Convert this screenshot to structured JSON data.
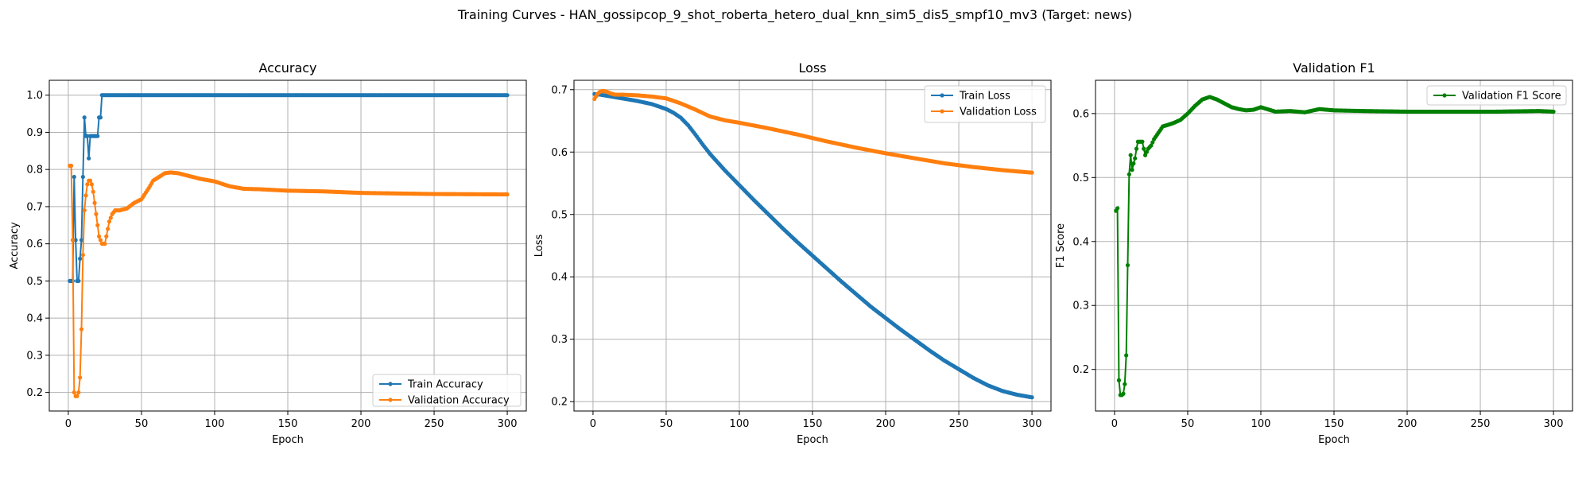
{
  "figure_title": "Training Curves - HAN_gossipcop_9_shot_roberta_hetero_dual_knn_sim5_dis5_smpf10_mv3 (Target: news)",
  "colors": {
    "train": "#1f77b4",
    "val": "#ff7f0e",
    "f1": "#008000",
    "grid": "#b0b0b0"
  },
  "chart_data": [
    {
      "type": "line",
      "title": "Accuracy",
      "xlabel": "Epoch",
      "ylabel": "Accuracy",
      "xlim": [
        -13,
        313
      ],
      "ylim": [
        0.15,
        1.04
      ],
      "xticks": [
        0,
        50,
        100,
        150,
        200,
        250,
        300
      ],
      "yticks": [
        0.2,
        0.3,
        0.4,
        0.5,
        0.6,
        0.7,
        0.8,
        0.9,
        1.0
      ],
      "ytick_labels": [
        "0.2",
        "0.3",
        "0.4",
        "0.5",
        "0.6",
        "0.7",
        "0.8",
        "0.9",
        "1.0"
      ],
      "grid": true,
      "legend_position": "lower right",
      "series": [
        {
          "name": "Train Accuracy",
          "color": "#1f77b4",
          "points": [
            [
              1,
              0.5
            ],
            [
              2,
              0.5
            ],
            [
              3,
              0.5
            ],
            [
              4,
              0.78
            ],
            [
              5,
              0.61
            ],
            [
              6,
              0.5
            ],
            [
              7,
              0.5
            ],
            [
              8,
              0.56
            ],
            [
              9,
              0.61
            ],
            [
              10,
              0.78
            ],
            [
              11,
              0.94
            ],
            [
              12,
              0.89
            ],
            [
              13,
              0.89
            ],
            [
              14,
              0.83
            ],
            [
              15,
              0.89
            ],
            [
              16,
              0.89
            ],
            [
              17,
              0.89
            ],
            [
              18,
              0.89
            ],
            [
              19,
              0.89
            ],
            [
              20,
              0.89
            ],
            [
              21,
              0.94
            ],
            [
              22,
              0.94
            ],
            [
              23,
              1.0
            ],
            [
              300,
              1.0
            ]
          ]
        },
        {
          "name": "Validation Accuracy",
          "color": "#ff7f0e",
          "points": [
            [
              1,
              0.81
            ],
            [
              2,
              0.81
            ],
            [
              3,
              0.61
            ],
            [
              4,
              0.2
            ],
            [
              5,
              0.19
            ],
            [
              6,
              0.19
            ],
            [
              7,
              0.2
            ],
            [
              8,
              0.24
            ],
            [
              9,
              0.37
            ],
            [
              10,
              0.57
            ],
            [
              11,
              0.69
            ],
            [
              12,
              0.73
            ],
            [
              13,
              0.76
            ],
            [
              14,
              0.77
            ],
            [
              15,
              0.77
            ],
            [
              16,
              0.76
            ],
            [
              17,
              0.74
            ],
            [
              18,
              0.71
            ],
            [
              19,
              0.68
            ],
            [
              20,
              0.65
            ],
            [
              21,
              0.62
            ],
            [
              22,
              0.61
            ],
            [
              23,
              0.6
            ],
            [
              24,
              0.6
            ],
            [
              25,
              0.6
            ],
            [
              26,
              0.62
            ],
            [
              27,
              0.64
            ],
            [
              28,
              0.66
            ],
            [
              30,
              0.68
            ],
            [
              32,
              0.69
            ],
            [
              35,
              0.69
            ],
            [
              40,
              0.695
            ],
            [
              45,
              0.71
            ],
            [
              50,
              0.72
            ],
            [
              55,
              0.75
            ],
            [
              58,
              0.77
            ],
            [
              62,
              0.78
            ],
            [
              66,
              0.79
            ],
            [
              70,
              0.792
            ],
            [
              75,
              0.79
            ],
            [
              80,
              0.785
            ],
            [
              90,
              0.775
            ],
            [
              100,
              0.768
            ],
            [
              110,
              0.755
            ],
            [
              120,
              0.748
            ],
            [
              130,
              0.747
            ],
            [
              150,
              0.743
            ],
            [
              175,
              0.741
            ],
            [
              200,
              0.737
            ],
            [
              250,
              0.734
            ],
            [
              300,
              0.733
            ]
          ]
        }
      ]
    },
    {
      "type": "line",
      "title": "Loss",
      "xlabel": "Epoch",
      "ylabel": "Loss",
      "xlim": [
        -13,
        313
      ],
      "ylim": [
        0.185,
        0.715
      ],
      "xticks": [
        0,
        50,
        100,
        150,
        200,
        250,
        300
      ],
      "yticks": [
        0.2,
        0.3,
        0.4,
        0.5,
        0.6,
        0.7
      ],
      "ytick_labels": [
        "0.2",
        "0.3",
        "0.4",
        "0.5",
        "0.6",
        "0.7"
      ],
      "grid": true,
      "legend_position": "upper right",
      "series": [
        {
          "name": "Train Loss",
          "color": "#1f77b4",
          "points": [
            [
              1,
              0.693
            ],
            [
              5,
              0.692
            ],
            [
              10,
              0.69
            ],
            [
              20,
              0.686
            ],
            [
              30,
              0.682
            ],
            [
              40,
              0.677
            ],
            [
              50,
              0.669
            ],
            [
              55,
              0.663
            ],
            [
              60,
              0.655
            ],
            [
              65,
              0.643
            ],
            [
              70,
              0.628
            ],
            [
              75,
              0.612
            ],
            [
              80,
              0.597
            ],
            [
              90,
              0.571
            ],
            [
              100,
              0.547
            ],
            [
              110,
              0.523
            ],
            [
              120,
              0.5
            ],
            [
              130,
              0.477
            ],
            [
              140,
              0.455
            ],
            [
              150,
              0.434
            ],
            [
              160,
              0.413
            ],
            [
              170,
              0.392
            ],
            [
              180,
              0.372
            ],
            [
              190,
              0.352
            ],
            [
              200,
              0.334
            ],
            [
              210,
              0.316
            ],
            [
              220,
              0.299
            ],
            [
              230,
              0.282
            ],
            [
              240,
              0.266
            ],
            [
              250,
              0.252
            ],
            [
              260,
              0.238
            ],
            [
              270,
              0.226
            ],
            [
              280,
              0.217
            ],
            [
              290,
              0.211
            ],
            [
              300,
              0.207
            ]
          ]
        },
        {
          "name": "Validation Loss",
          "color": "#ff7f0e",
          "points": [
            [
              1,
              0.685
            ],
            [
              3,
              0.693
            ],
            [
              5,
              0.697
            ],
            [
              7,
              0.698
            ],
            [
              9,
              0.697
            ],
            [
              12,
              0.694
            ],
            [
              15,
              0.692
            ],
            [
              20,
              0.692
            ],
            [
              30,
              0.691
            ],
            [
              40,
              0.689
            ],
            [
              50,
              0.686
            ],
            [
              60,
              0.678
            ],
            [
              70,
              0.668
            ],
            [
              80,
              0.657
            ],
            [
              90,
              0.651
            ],
            [
              100,
              0.647
            ],
            [
              120,
              0.638
            ],
            [
              140,
              0.628
            ],
            [
              160,
              0.617
            ],
            [
              180,
              0.607
            ],
            [
              200,
              0.598
            ],
            [
              220,
              0.59
            ],
            [
              240,
              0.582
            ],
            [
              260,
              0.576
            ],
            [
              280,
              0.571
            ],
            [
              300,
              0.567
            ]
          ]
        }
      ]
    },
    {
      "type": "line",
      "title": "Validation F1",
      "xlabel": "Epoch",
      "ylabel": "F1 Score",
      "xlim": [
        -13,
        313
      ],
      "ylim": [
        0.135,
        0.652
      ],
      "xticks": [
        0,
        50,
        100,
        150,
        200,
        250,
        300
      ],
      "yticks": [
        0.2,
        0.3,
        0.4,
        0.5,
        0.6
      ],
      "ytick_labels": [
        "0.2",
        "0.3",
        "0.4",
        "0.5",
        "0.6"
      ],
      "grid": true,
      "legend_position": "upper right",
      "series": [
        {
          "name": "Validation F1 Score",
          "color": "#008000",
          "points": [
            [
              1,
              0.448
            ],
            [
              2,
              0.452
            ],
            [
              3,
              0.183
            ],
            [
              4,
              0.16
            ],
            [
              5,
              0.16
            ],
            [
              6,
              0.162
            ],
            [
              7,
              0.177
            ],
            [
              8,
              0.222
            ],
            [
              9,
              0.363
            ],
            [
              10,
              0.505
            ],
            [
              11,
              0.535
            ],
            [
              12,
              0.512
            ],
            [
              13,
              0.522
            ],
            [
              14,
              0.53
            ],
            [
              15,
              0.545
            ],
            [
              16,
              0.556
            ],
            [
              17,
              0.556
            ],
            [
              18,
              0.556
            ],
            [
              19,
              0.556
            ],
            [
              20,
              0.545
            ],
            [
              21,
              0.535
            ],
            [
              22,
              0.54
            ],
            [
              23,
              0.545
            ],
            [
              25,
              0.55
            ],
            [
              27,
              0.56
            ],
            [
              30,
              0.57
            ],
            [
              33,
              0.58
            ],
            [
              36,
              0.582
            ],
            [
              40,
              0.585
            ],
            [
              45,
              0.59
            ],
            [
              50,
              0.6
            ],
            [
              55,
              0.612
            ],
            [
              60,
              0.622
            ],
            [
              65,
              0.626
            ],
            [
              70,
              0.622
            ],
            [
              75,
              0.616
            ],
            [
              80,
              0.61
            ],
            [
              85,
              0.607
            ],
            [
              90,
              0.605
            ],
            [
              95,
              0.606
            ],
            [
              100,
              0.61
            ],
            [
              110,
              0.603
            ],
            [
              120,
              0.604
            ],
            [
              130,
              0.602
            ],
            [
              140,
              0.607
            ],
            [
              150,
              0.605
            ],
            [
              170,
              0.604
            ],
            [
              200,
              0.603
            ],
            [
              230,
              0.603
            ],
            [
              260,
              0.603
            ],
            [
              290,
              0.604
            ],
            [
              300,
              0.603
            ]
          ]
        }
      ]
    }
  ]
}
